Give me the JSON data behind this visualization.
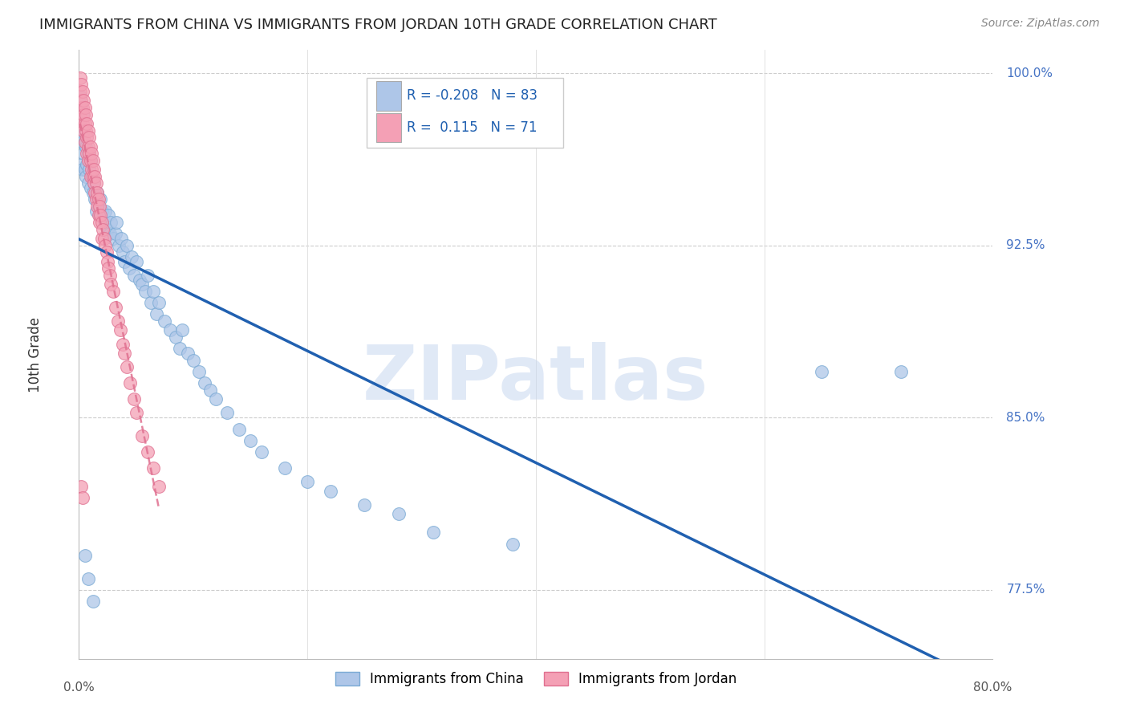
{
  "title": "IMMIGRANTS FROM CHINA VS IMMIGRANTS FROM JORDAN 10TH GRADE CORRELATION CHART",
  "source": "Source: ZipAtlas.com",
  "ylabel": "10th Grade",
  "xlim": [
    0.0,
    0.8
  ],
  "ylim": [
    0.745,
    1.01
  ],
  "china_R": -0.208,
  "china_N": 83,
  "jordan_R": 0.115,
  "jordan_N": 71,
  "china_color": "#aec6e8",
  "china_edge_color": "#7aaad4",
  "china_line_color": "#2060b0",
  "jordan_color": "#f4a0b5",
  "jordan_edge_color": "#e07090",
  "jordan_line_color": "#e07090",
  "watermark": "ZIPatlas",
  "background_color": "#ffffff",
  "legend_label_china": "Immigrants from China",
  "legend_label_jordan": "Immigrants from Jordan",
  "ytick_positions": [
    1.0,
    0.925,
    0.85,
    0.775
  ],
  "ytick_labels": [
    "100.0%",
    "92.5%",
    "85.0%",
    "77.5%"
  ],
  "xtick_positions": [
    0.0,
    0.2,
    0.4,
    0.6,
    0.8
  ],
  "china_scatter_x": [
    0.001,
    0.001,
    0.002,
    0.002,
    0.002,
    0.003,
    0.003,
    0.003,
    0.004,
    0.004,
    0.005,
    0.005,
    0.006,
    0.006,
    0.007,
    0.008,
    0.008,
    0.009,
    0.01,
    0.01,
    0.011,
    0.012,
    0.013,
    0.014,
    0.015,
    0.016,
    0.017,
    0.018,
    0.019,
    0.02,
    0.022,
    0.023,
    0.025,
    0.026,
    0.027,
    0.028,
    0.03,
    0.032,
    0.033,
    0.035,
    0.037,
    0.038,
    0.04,
    0.042,
    0.044,
    0.046,
    0.048,
    0.05,
    0.053,
    0.055,
    0.058,
    0.06,
    0.063,
    0.065,
    0.068,
    0.07,
    0.075,
    0.08,
    0.085,
    0.088,
    0.09,
    0.095,
    0.1,
    0.105,
    0.11,
    0.115,
    0.12,
    0.13,
    0.14,
    0.15,
    0.16,
    0.18,
    0.2,
    0.22,
    0.25,
    0.28,
    0.31,
    0.38,
    0.65,
    0.72,
    0.005,
    0.008,
    0.012
  ],
  "china_scatter_y": [
    0.99,
    0.978,
    0.985,
    0.972,
    0.96,
    0.982,
    0.97,
    0.958,
    0.975,
    0.965,
    0.97,
    0.958,
    0.968,
    0.955,
    0.96,
    0.965,
    0.952,
    0.958,
    0.962,
    0.95,
    0.955,
    0.948,
    0.952,
    0.945,
    0.94,
    0.948,
    0.942,
    0.938,
    0.945,
    0.94,
    0.935,
    0.94,
    0.932,
    0.938,
    0.93,
    0.935,
    0.928,
    0.93,
    0.935,
    0.925,
    0.928,
    0.922,
    0.918,
    0.925,
    0.915,
    0.92,
    0.912,
    0.918,
    0.91,
    0.908,
    0.905,
    0.912,
    0.9,
    0.905,
    0.895,
    0.9,
    0.892,
    0.888,
    0.885,
    0.88,
    0.888,
    0.878,
    0.875,
    0.87,
    0.865,
    0.862,
    0.858,
    0.852,
    0.845,
    0.84,
    0.835,
    0.828,
    0.822,
    0.818,
    0.812,
    0.808,
    0.8,
    0.795,
    0.87,
    0.87,
    0.79,
    0.78,
    0.77
  ],
  "jordan_scatter_x": [
    0.001,
    0.001,
    0.001,
    0.002,
    0.002,
    0.002,
    0.003,
    0.003,
    0.003,
    0.004,
    0.004,
    0.004,
    0.005,
    0.005,
    0.005,
    0.006,
    0.006,
    0.007,
    0.007,
    0.007,
    0.008,
    0.008,
    0.008,
    0.009,
    0.009,
    0.01,
    0.01,
    0.01,
    0.011,
    0.011,
    0.012,
    0.012,
    0.013,
    0.013,
    0.014,
    0.014,
    0.015,
    0.015,
    0.016,
    0.016,
    0.017,
    0.017,
    0.018,
    0.018,
    0.019,
    0.02,
    0.02,
    0.021,
    0.022,
    0.023,
    0.024,
    0.025,
    0.026,
    0.027,
    0.028,
    0.03,
    0.032,
    0.034,
    0.036,
    0.038,
    0.04,
    0.042,
    0.045,
    0.048,
    0.05,
    0.055,
    0.06,
    0.065,
    0.07,
    0.002,
    0.003
  ],
  "jordan_scatter_y": [
    0.998,
    0.992,
    0.985,
    0.995,
    0.988,
    0.98,
    0.992,
    0.985,
    0.978,
    0.988,
    0.982,
    0.975,
    0.985,
    0.978,
    0.97,
    0.982,
    0.975,
    0.978,
    0.972,
    0.965,
    0.975,
    0.968,
    0.962,
    0.972,
    0.965,
    0.968,
    0.962,
    0.955,
    0.965,
    0.958,
    0.962,
    0.955,
    0.958,
    0.952,
    0.955,
    0.948,
    0.952,
    0.945,
    0.948,
    0.942,
    0.945,
    0.938,
    0.942,
    0.935,
    0.938,
    0.935,
    0.928,
    0.932,
    0.928,
    0.925,
    0.922,
    0.918,
    0.915,
    0.912,
    0.908,
    0.905,
    0.898,
    0.892,
    0.888,
    0.882,
    0.878,
    0.872,
    0.865,
    0.858,
    0.852,
    0.842,
    0.835,
    0.828,
    0.82,
    0.82,
    0.815
  ]
}
